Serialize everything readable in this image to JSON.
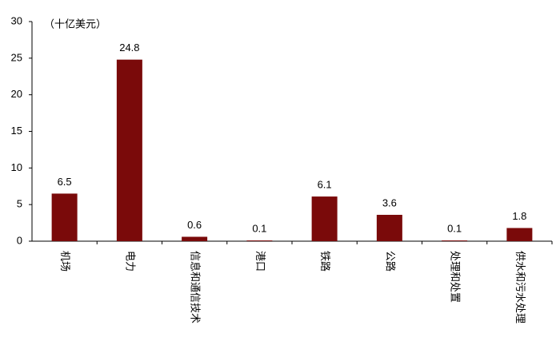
{
  "chart_data": {
    "type": "bar",
    "subtitle": "（十亿美元）",
    "categories": [
      "机场",
      "电力",
      "信息和通信技术",
      "港口",
      "铁路",
      "公路",
      "处理和处置",
      "供水和污水处理"
    ],
    "values": [
      6.5,
      24.8,
      0.6,
      0.1,
      6.1,
      3.6,
      0.1,
      1.8
    ],
    "color": "#7a0a0a",
    "ylim": [
      0,
      30
    ],
    "yticks": [
      0,
      5,
      10,
      15,
      20,
      25,
      30
    ],
    "grid": false
  }
}
